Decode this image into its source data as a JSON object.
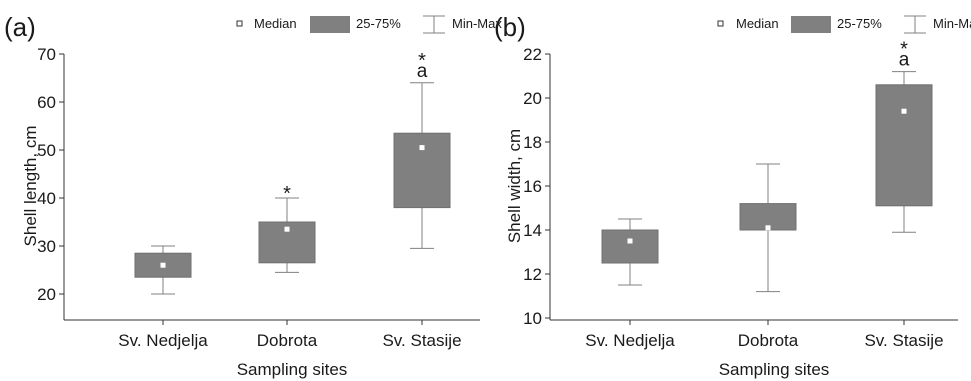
{
  "panels": [
    {
      "panel_label": "(a)",
      "legend": {
        "median": "Median",
        "box": "25-75%",
        "whisker": "Min-Max"
      }
    },
    {
      "panel_label": "(b)",
      "legend": {
        "median": "Median",
        "box": "25-75%",
        "whisker": "Min-Max"
      }
    }
  ],
  "chart_data": [
    {
      "type": "box",
      "ylabel": "Shell length, cm",
      "xlabel": "Sampling sites",
      "ylim": [
        15,
        70
      ],
      "yticks": [
        20,
        30,
        40,
        50,
        60,
        70
      ],
      "categories": [
        "Sv. Nedjelja",
        "Dobrota",
        "Sv. Stasije"
      ],
      "boxes": [
        {
          "min": 20.0,
          "q1": 23.5,
          "median": 26.0,
          "q3": 28.5,
          "max": 30.0,
          "annotation": ""
        },
        {
          "min": 24.5,
          "q1": 26.5,
          "median": 33.5,
          "q3": 35.0,
          "max": 40.0,
          "annotation": "*"
        },
        {
          "min": 29.5,
          "q1": 38.0,
          "median": 50.5,
          "q3": 53.5,
          "max": 64.0,
          "annotation": "*\na"
        }
      ],
      "box_color": "#808080"
    },
    {
      "type": "box",
      "ylabel": "Shell width, cm",
      "xlabel": "Sampling sites",
      "ylim": [
        10,
        22
      ],
      "yticks": [
        10,
        12,
        14,
        16,
        18,
        20,
        22
      ],
      "categories": [
        "Sv. Nedjelja",
        "Dobrota",
        "Sv. Stasije"
      ],
      "boxes": [
        {
          "min": 11.5,
          "q1": 12.5,
          "median": 13.5,
          "q3": 14.0,
          "max": 14.5,
          "annotation": ""
        },
        {
          "min": 11.2,
          "q1": 14.0,
          "median": 14.1,
          "q3": 15.2,
          "max": 17.0,
          "annotation": ""
        },
        {
          "min": 13.9,
          "q1": 15.1,
          "median": 19.4,
          "q3": 20.6,
          "max": 21.2,
          "annotation": "*\na"
        }
      ],
      "box_color": "#808080"
    }
  ]
}
